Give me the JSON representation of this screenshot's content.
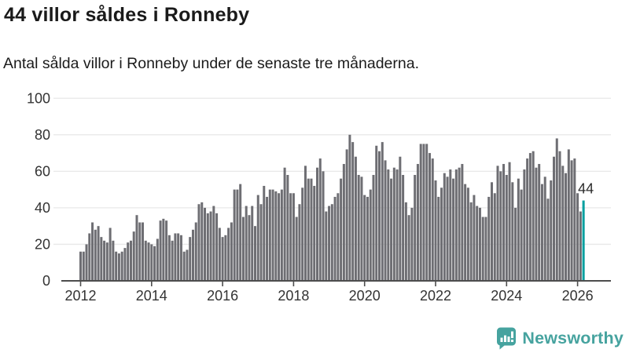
{
  "header": {
    "title": "44 villor såldes i Ronneby",
    "subtitle": "Antal sålda villor i Ronneby under de senaste tre månaderna."
  },
  "chart_data": {
    "type": "bar",
    "title": "44 villor såldes i Ronneby",
    "subtitle": "Antal sålda villor i Ronneby under de senaste tre månaderna.",
    "x_start_month": "2012-01",
    "x_end_month": "2026-03",
    "x_tick_labels": [
      "2012",
      "2014",
      "2016",
      "2018",
      "2020",
      "2022",
      "2024",
      "2026"
    ],
    "y_tick_labels": [
      "0",
      "20",
      "40",
      "60",
      "80",
      "100"
    ],
    "y_ticks": [
      0,
      20,
      40,
      60,
      80,
      100
    ],
    "ylim": [
      0,
      100
    ],
    "grid": true,
    "values": [
      16,
      16,
      20,
      26,
      32,
      28,
      30,
      24,
      22,
      21,
      29,
      22,
      16,
      15,
      16,
      18,
      21,
      22,
      27,
      36,
      32,
      32,
      22,
      21,
      20,
      19,
      23,
      33,
      34,
      33,
      25,
      22,
      26,
      26,
      25,
      16,
      17,
      24,
      28,
      32,
      42,
      43,
      40,
      37,
      38,
      41,
      37,
      29,
      24,
      25,
      29,
      32,
      50,
      50,
      53,
      35,
      41,
      36,
      41,
      30,
      47,
      42,
      52,
      46,
      50,
      50,
      49,
      48,
      50,
      62,
      58,
      48,
      48,
      35,
      42,
      51,
      63,
      56,
      56,
      52,
      62,
      67,
      60,
      38,
      41,
      42,
      46,
      48,
      56,
      64,
      72,
      80,
      76,
      68,
      58,
      57,
      47,
      46,
      50,
      58,
      74,
      71,
      76,
      66,
      61,
      56,
      62,
      61,
      68,
      58,
      43,
      36,
      40,
      58,
      64,
      75,
      75,
      75,
      70,
      67,
      55,
      46,
      51,
      59,
      57,
      61,
      56,
      61,
      62,
      64,
      53,
      51,
      43,
      47,
      41,
      40,
      35,
      35,
      46,
      54,
      48,
      63,
      60,
      64,
      58,
      65,
      54,
      40,
      56,
      50,
      61,
      67,
      70,
      71,
      62,
      64,
      53,
      57,
      45,
      55,
      68,
      78,
      71,
      63,
      59,
      72,
      66,
      67,
      48,
      38,
      44
    ],
    "highlight_last": true,
    "annotation": "44",
    "annotation_value": 44
  },
  "colors": {
    "bar": "#6e6e73",
    "highlight": "#009f9f",
    "grid": "#e8e8e8",
    "axis": "#4d4d4d",
    "tick_text": "#333333",
    "logo": "#46a39f"
  },
  "footer": {
    "brand": "Newsworthy"
  }
}
